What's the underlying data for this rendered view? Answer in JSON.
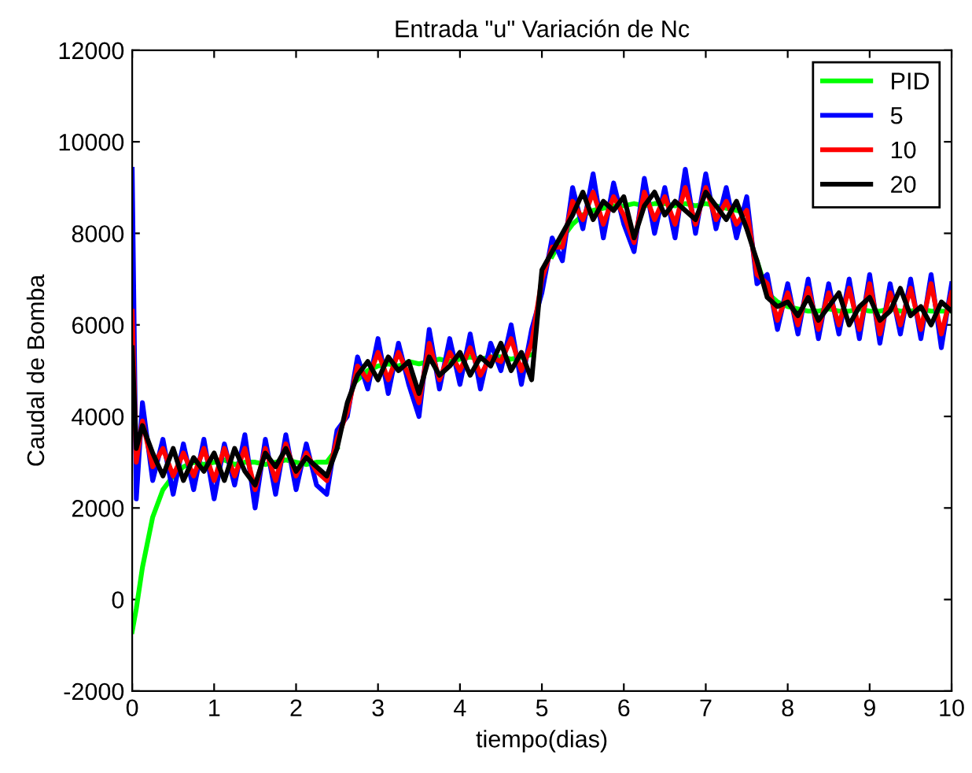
{
  "chart_data": {
    "type": "line",
    "title": "Entrada \"u\" Variación de Nc",
    "xlabel": "tiempo(dias)",
    "ylabel": "Caudal de Bomba",
    "x": [
      0,
      0.05,
      0.125,
      0.25,
      0.375,
      0.5,
      0.625,
      0.75,
      0.875,
      1.0,
      1.125,
      1.25,
      1.375,
      1.5,
      1.625,
      1.75,
      1.875,
      2.0,
      2.125,
      2.25,
      2.375,
      2.5,
      2.625,
      2.75,
      2.875,
      3.0,
      3.125,
      3.25,
      3.375,
      3.5,
      3.625,
      3.75,
      3.875,
      4.0,
      4.125,
      4.25,
      4.375,
      4.5,
      4.625,
      4.75,
      4.875,
      5.0,
      5.125,
      5.25,
      5.375,
      5.5,
      5.625,
      5.75,
      5.875,
      6.0,
      6.125,
      6.25,
      6.375,
      6.5,
      6.625,
      6.75,
      6.875,
      7.0,
      7.125,
      7.25,
      7.375,
      7.5,
      7.625,
      7.75,
      7.875,
      8.0,
      8.125,
      8.25,
      8.375,
      8.5,
      8.625,
      8.75,
      8.875,
      9.0,
      9.125,
      9.25,
      9.375,
      9.5,
      9.625,
      9.75,
      9.875,
      10.0
    ],
    "series": [
      {
        "name": "PID",
        "color": "#00ff00",
        "values": [
          -700,
          -200,
          700,
          1800,
          2400,
          2700,
          2900,
          3000,
          2950,
          3000,
          3050,
          2950,
          3000,
          3000,
          2950,
          3000,
          3050,
          3000,
          2950,
          3000,
          3000,
          3300,
          null,
          4800,
          5000,
          5100,
          5150,
          5100,
          5200,
          5150,
          5200,
          5250,
          5200,
          5250,
          5300,
          5250,
          5300,
          5300,
          5250,
          5300,
          5350,
          null,
          7500,
          7900,
          8200,
          8400,
          8500,
          8550,
          8600,
          8600,
          8650,
          8600,
          8650,
          8650,
          8600,
          8650,
          8600,
          8650,
          8600,
          8550,
          8500,
          null,
          7400,
          6700,
          6500,
          6400,
          6350,
          6300,
          6300,
          6350,
          6300,
          6300,
          6350,
          6300,
          6300,
          6350,
          6300,
          6300,
          6350,
          6300,
          6300,
          6300
        ]
      },
      {
        "name": "5",
        "color": "#0000ff",
        "values": [
          9400,
          2200,
          4300,
          2600,
          3500,
          2300,
          3400,
          2400,
          3500,
          2200,
          3400,
          2500,
          3600,
          2000,
          3500,
          2300,
          3600,
          2400,
          3400,
          2500,
          2300,
          3700,
          4000,
          5300,
          4600,
          5700,
          4500,
          5600,
          4700,
          4000,
          5900,
          4600,
          5700,
          4700,
          5800,
          4600,
          5600,
          5000,
          6000,
          4700,
          5900,
          6700,
          7900,
          7400,
          9000,
          8100,
          9300,
          7900,
          9100,
          8200,
          7600,
          9200,
          8000,
          9000,
          7900,
          9400,
          8000,
          9300,
          8100,
          9000,
          7900,
          8800,
          6900,
          7100,
          5900,
          6900,
          5800,
          7000,
          5700,
          6900,
          5800,
          7000,
          5700,
          7100,
          5600,
          6900,
          5800,
          7000,
          5700,
          7100,
          5500,
          6900
        ]
      },
      {
        "name": "10",
        "color": "#ff0000",
        "values": [
          6300,
          3000,
          3900,
          2900,
          3300,
          2700,
          3200,
          2700,
          3300,
          2600,
          3300,
          2700,
          3300,
          2400,
          3300,
          2600,
          3400,
          2700,
          3200,
          2800,
          2600,
          3500,
          4100,
          5100,
          4800,
          5400,
          4800,
          5400,
          4900,
          4300,
          5600,
          4800,
          5400,
          5000,
          5500,
          4900,
          5300,
          5200,
          5700,
          5000,
          5600,
          7000,
          7700,
          7700,
          8700,
          8300,
          8900,
          8200,
          8800,
          8400,
          7800,
          8900,
          8300,
          8800,
          8200,
          9000,
          8200,
          9000,
          8300,
          8700,
          8200,
          8500,
          7100,
          6900,
          6100,
          6700,
          6000,
          6800,
          5900,
          6700,
          6000,
          6800,
          5900,
          6900,
          5800,
          6700,
          6000,
          6800,
          5900,
          6900,
          5800,
          6700
        ]
      },
      {
        "name": "20",
        "color": "#000000",
        "values": [
          5500,
          3300,
          3800,
          3200,
          2700,
          3300,
          2600,
          3100,
          2800,
          3200,
          2600,
          3300,
          2800,
          2500,
          3200,
          2900,
          3300,
          2800,
          3100,
          2900,
          2700,
          3300,
          4300,
          4900,
          5200,
          4800,
          5300,
          5000,
          5200,
          4500,
          5300,
          4900,
          5100,
          5400,
          4900,
          5300,
          5100,
          5600,
          5000,
          5400,
          4800,
          7200,
          7600,
          8000,
          8400,
          8900,
          8300,
          8700,
          8500,
          8800,
          7900,
          8600,
          8900,
          8400,
          8700,
          8500,
          8300,
          8900,
          8600,
          8300,
          8700,
          8100,
          7400,
          6600,
          6400,
          6500,
          6200,
          6600,
          6100,
          6400,
          6700,
          6000,
          6400,
          6600,
          6100,
          6300,
          6800,
          6200,
          6400,
          6000,
          6500,
          6300
        ]
      }
    ],
    "xlim": [
      0,
      10
    ],
    "xticks": [
      0,
      1,
      2,
      3,
      4,
      5,
      6,
      7,
      8,
      9,
      10
    ],
    "ylim": [
      -2000,
      12000
    ],
    "yticks": [
      -2000,
      0,
      2000,
      4000,
      6000,
      8000,
      10000,
      12000
    ],
    "grid": false,
    "legend": "top right"
  }
}
